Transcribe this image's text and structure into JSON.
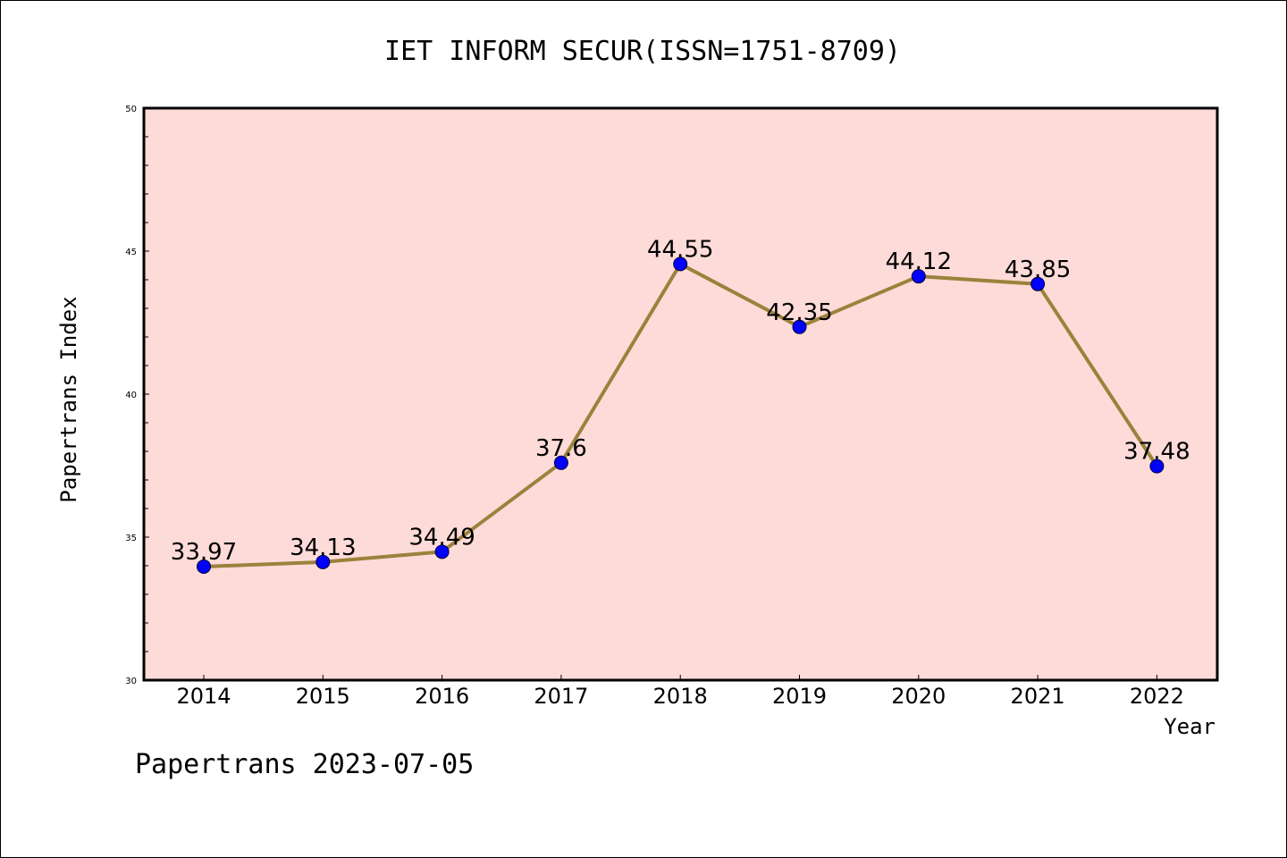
{
  "chart_data": {
    "type": "line",
    "title": "IET INFORM SECUR(ISSN=1751-8709)",
    "xlabel": "Year",
    "ylabel": "Papertrans Index",
    "categories": [
      "2014",
      "2015",
      "2016",
      "2017",
      "2018",
      "2019",
      "2020",
      "2021",
      "2022"
    ],
    "series": [
      {
        "values": [
          33.97,
          34.13,
          34.49,
          37.6,
          44.55,
          42.35,
          44.12,
          43.85,
          37.48
        ],
        "labels": [
          "33.97",
          "34.13",
          "34.49",
          "37.6",
          "44.55",
          "42.35",
          "44.12",
          "43.85",
          "37.48"
        ]
      }
    ],
    "ylim": [
      30,
      50
    ],
    "yticks": [
      "30",
      "35",
      "40",
      "45",
      "50"
    ],
    "grid": false,
    "colors": {
      "plot_background": "#fddbd8",
      "line": "#9b823c",
      "marker": "#0000ff"
    }
  },
  "footer": "Papertrans 2023-07-05"
}
